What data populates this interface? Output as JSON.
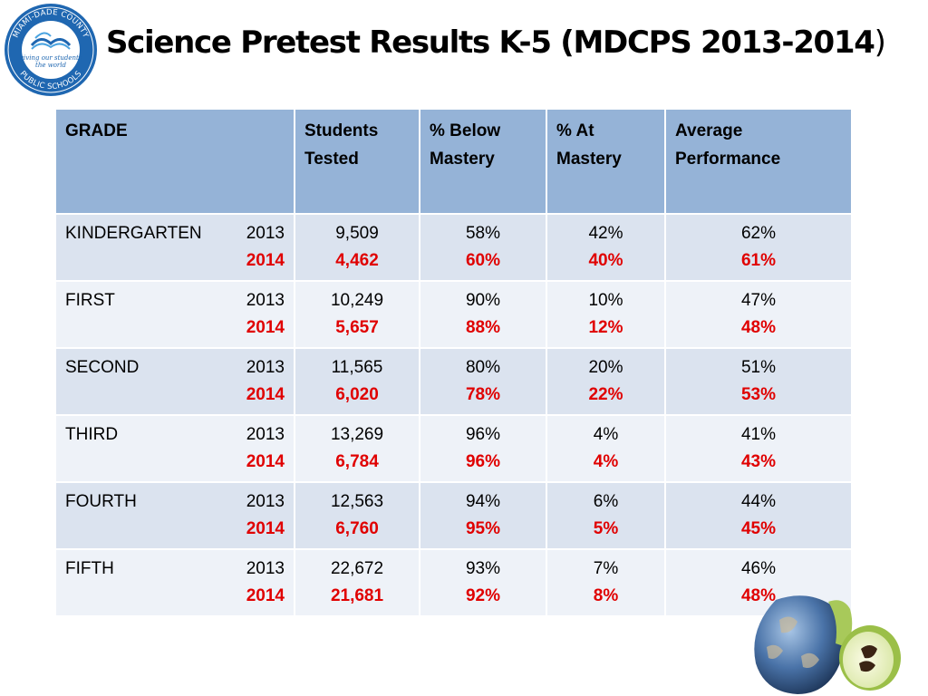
{
  "logo": {
    "ring_top_text": "MIAMI-DADE COUNTY",
    "ring_bottom_text": "PUBLIC SCHOOLS",
    "tagline_line1": "giving our students",
    "tagline_line2": "the world"
  },
  "title": {
    "main": "Science Pretest Results K-5 (MDCPS 2013-2014",
    "close_paren": ")"
  },
  "table": {
    "headers": {
      "grade": "GRADE",
      "students_tested_1": "Students",
      "students_tested_2": "Tested",
      "below_mastery_1": "% Below",
      "below_mastery_2": "Mastery",
      "at_mastery_1": "% At",
      "at_mastery_2": "Mastery",
      "avg_performance_1": "Average",
      "avg_performance_2": "Performance"
    },
    "rows": [
      {
        "grade": "KINDERGARTEN",
        "year1": "2013",
        "year2": "2014",
        "students": [
          "9,509",
          "4,462"
        ],
        "below": [
          "58%",
          "60%"
        ],
        "at": [
          "42%",
          "40%"
        ],
        "avg": [
          "62%",
          "61%"
        ]
      },
      {
        "grade": "FIRST",
        "year1": "2013",
        "year2": "2014",
        "students": [
          "10,249",
          "5,657"
        ],
        "below": [
          "90%",
          "88%"
        ],
        "at": [
          "10%",
          "12%"
        ],
        "avg": [
          "47%",
          "48%"
        ]
      },
      {
        "grade": "SECOND",
        "year1": "2013",
        "year2": "2014",
        "students": [
          "11,565",
          "6,020"
        ],
        "below": [
          "80%",
          "78%"
        ],
        "at": [
          "20%",
          "22%"
        ],
        "avg": [
          "51%",
          "53%"
        ]
      },
      {
        "grade": "THIRD",
        "year1": "2013",
        "year2": "2014",
        "students": [
          "13,269",
          "6,784"
        ],
        "below": [
          "96%",
          "96%"
        ],
        "at": [
          "4%",
          "4%"
        ],
        "avg": [
          "41%",
          "43%"
        ]
      },
      {
        "grade": "FOURTH",
        "year1": "2013",
        "year2": "2014",
        "students": [
          "12,563",
          "6,760"
        ],
        "below": [
          "94%",
          "95%"
        ],
        "at": [
          "6%",
          "5%"
        ],
        "avg": [
          "44%",
          "45%"
        ]
      },
      {
        "grade": "FIFTH",
        "year1": "2013",
        "year2": "2014",
        "students": [
          "22,672",
          "21,681"
        ],
        "below": [
          "93%",
          "92%"
        ],
        "at": [
          "7%",
          "8%"
        ],
        "avg": [
          "46%",
          "48%"
        ]
      }
    ]
  },
  "colors": {
    "header_bg": "#95b3d7",
    "row_odd_bg": "#dbe3ef",
    "row_even_bg": "#eef2f8",
    "year_2014_text": "#e00000",
    "logo_blue": "#1f67b1"
  },
  "decoration": {
    "bottom_right_image": "earth-apple-icon"
  }
}
